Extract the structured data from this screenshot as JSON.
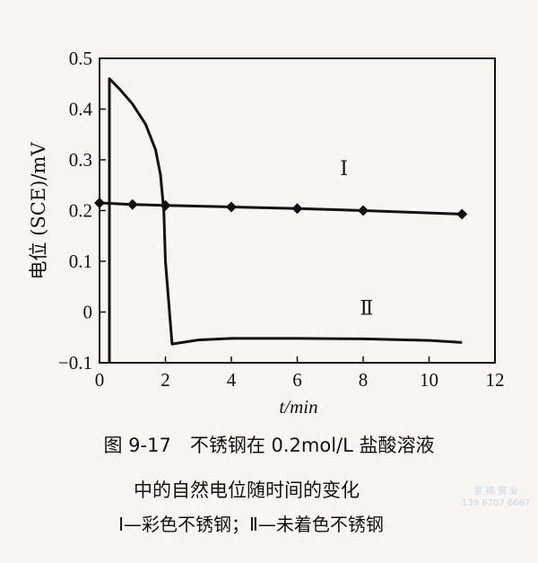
{
  "figure": {
    "caption_line1": "图 9-17　不锈钢在 0.2mol/L 盐酸溶液",
    "caption_line2": "中的自然电位随时间的变化",
    "caption_line3": "Ⅰ—彩色不锈钢；Ⅱ—未着色不锈钢",
    "watermark_line1": "至 德 钢 业",
    "watermark_line2": "139 6707 6667"
  },
  "chart_data": {
    "type": "line",
    "title": "图 9-17 不锈钢在 0.2mol/L 盐酸溶液中的自然电位随时间的变化",
    "xlabel": "t/min",
    "ylabel": "电位 (SCE)/mV",
    "xlim": [
      0,
      12
    ],
    "ylim": [
      -0.1,
      0.5
    ],
    "xticks": [
      0,
      2,
      4,
      6,
      8,
      10,
      12
    ],
    "yticks": [
      -0.1,
      0,
      0.1,
      0.2,
      0.3,
      0.4,
      0.5
    ],
    "xtick_labels": [
      "0",
      "2",
      "4",
      "6",
      "8",
      "10",
      "12"
    ],
    "ytick_labels": [
      "-0.1",
      "0",
      "0.1",
      "0.2",
      "0.3",
      "0.4",
      "0.5"
    ],
    "grid": false,
    "legend": "curve labels inline (Ⅰ, Ⅱ)",
    "series": [
      {
        "name": "Ⅰ",
        "description": "彩色不锈钢",
        "marker": "diamond",
        "label_pos": [
          7.3,
          0.27
        ],
        "x": [
          0,
          1,
          2,
          4,
          6,
          8,
          11
        ],
        "y": [
          0.215,
          0.212,
          0.21,
          0.207,
          0.204,
          0.2,
          0.193
        ]
      },
      {
        "name": "Ⅱ",
        "description": "未着色不锈钢",
        "marker": "none",
        "label_pos": [
          7.9,
          -0.005
        ],
        "x": [
          0.3,
          0.3,
          0.6,
          1.0,
          1.4,
          1.7,
          1.85,
          1.95,
          2.0,
          2.2,
          3,
          4,
          6,
          8,
          10,
          11
        ],
        "y": [
          -0.1,
          0.46,
          0.44,
          0.41,
          0.37,
          0.32,
          0.27,
          0.2,
          0.1,
          -0.063,
          -0.055,
          -0.052,
          -0.052,
          -0.053,
          -0.056,
          -0.06
        ]
      }
    ]
  }
}
